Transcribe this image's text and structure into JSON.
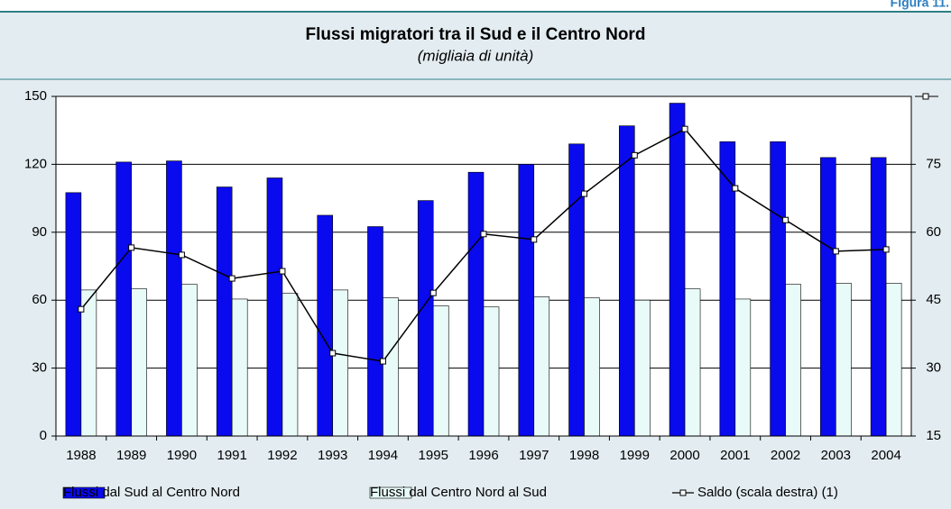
{
  "chart_data": {
    "type": "bar",
    "figure_label": "Figura 11.",
    "title": "Flussi migratori tra il Sud e il Centro Nord",
    "subtitle": "(migliaia di unità)",
    "categories": [
      "1988",
      "1989",
      "1990",
      "1991",
      "1992",
      "1993",
      "1994",
      "1995",
      "1996",
      "1997",
      "1998",
      "1999",
      "2000",
      "2001",
      "2002",
      "2003",
      "2004"
    ],
    "series": [
      {
        "name": "Flussi dal Sud al Centro Nord",
        "color": "#0a0aee",
        "type": "bar",
        "values": [
          107.5,
          121,
          121.5,
          110,
          114,
          97.5,
          92.5,
          104,
          116.5,
          120,
          129,
          137,
          147,
          130,
          130,
          123,
          123
        ]
      },
      {
        "name": "Flussi dal Centro Nord al Sud",
        "color": "#e8fbf8",
        "type": "bar",
        "values": [
          64.5,
          65,
          67,
          60.5,
          63,
          64.5,
          61,
          57.5,
          57,
          61.5,
          61,
          60,
          65,
          60.5,
          67,
          67.5,
          67.5
        ]
      },
      {
        "name": "Saldo (scala destra) (1)",
        "color": "#000000",
        "type": "line",
        "axis": "y2",
        "values": [
          43,
          56.6,
          55,
          49.8,
          51.4,
          33.3,
          31.5,
          46.6,
          59.6,
          58.4,
          68.5,
          77,
          82.8,
          69.7,
          62.7,
          55.8,
          56.2
        ]
      }
    ],
    "ylim": [
      0,
      150
    ],
    "yticks": [
      0,
      30,
      60,
      90,
      120,
      150
    ],
    "y2lim": [
      15,
      90
    ],
    "y2ticks": [
      15,
      30,
      45,
      60,
      75
    ],
    "grid": true,
    "legend": "bottom"
  }
}
